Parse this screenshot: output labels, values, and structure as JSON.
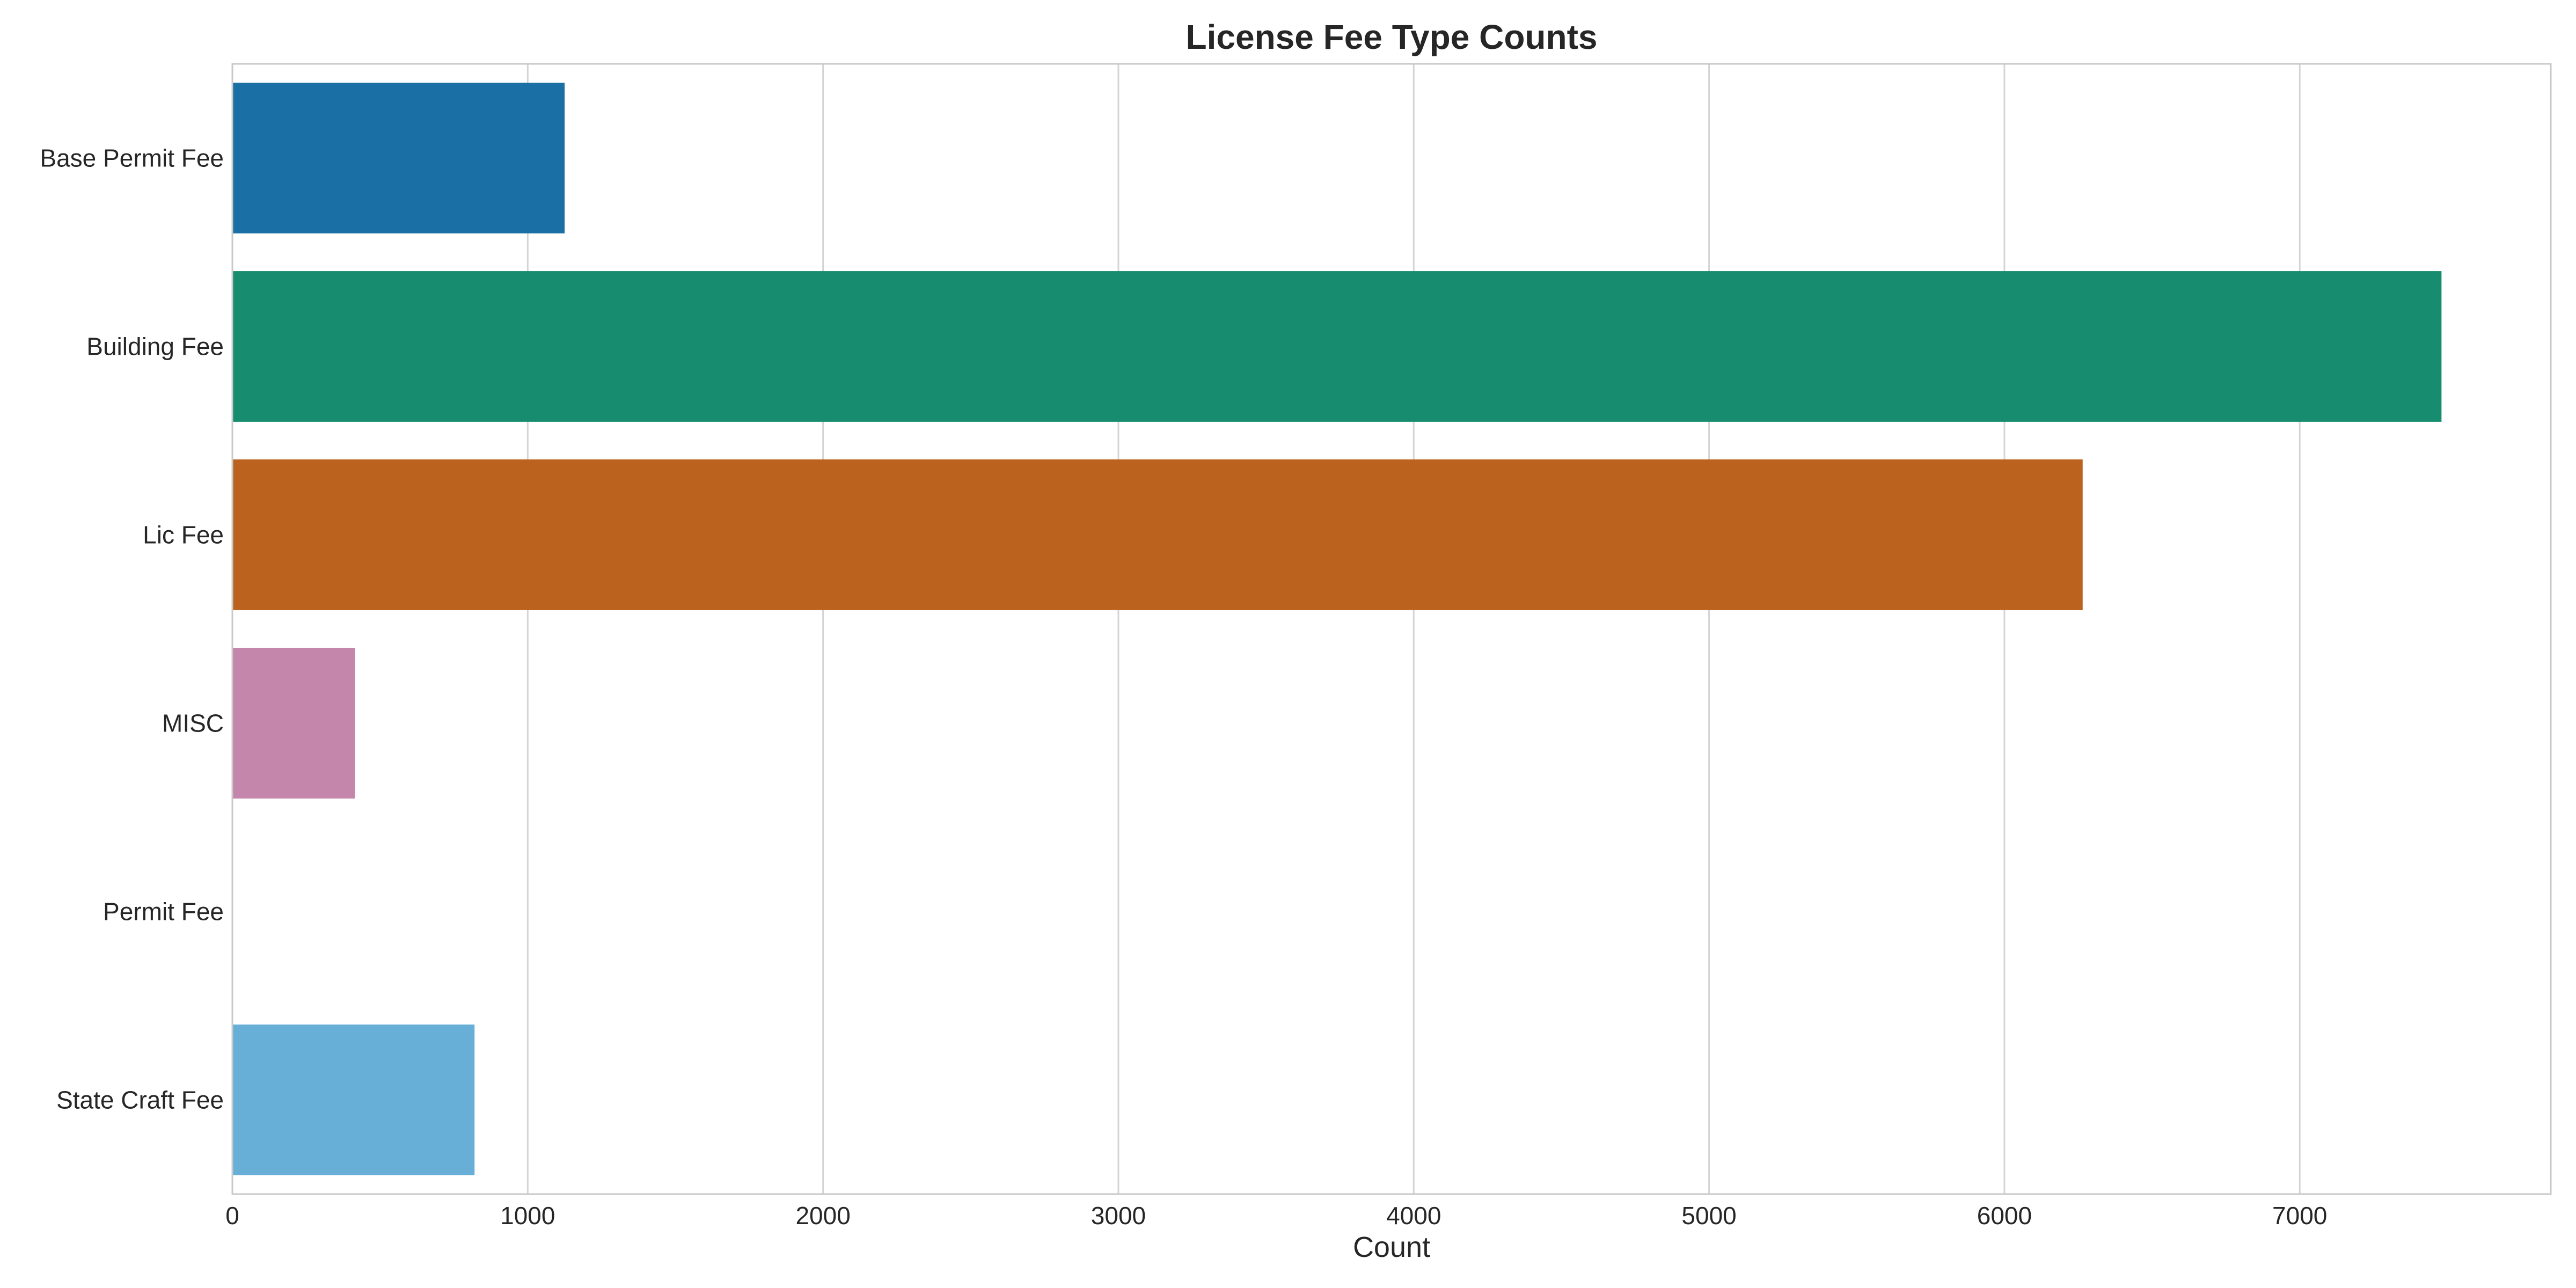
{
  "chart_data": {
    "type": "bar",
    "orientation": "horizontal",
    "title": "License Fee Type Counts",
    "xlabel": "Count",
    "ylabel": "",
    "categories": [
      "Base Permit Fee",
      "Building Fee",
      "Lic Fee",
      "MISC",
      "Permit Fee",
      "State Craft Fee"
    ],
    "values": [
      1125,
      7480,
      6265,
      415,
      0,
      820
    ],
    "colors": [
      "#1a6fa4",
      "#178c6e",
      "#bb631e",
      "#c486aa",
      "#ffffff",
      "#68afd8"
    ],
    "xlim": [
      0,
      7850
    ],
    "xticks": [
      0,
      1000,
      2000,
      3000,
      4000,
      5000,
      6000,
      7000
    ],
    "xtick_labels": [
      "0",
      "1000",
      "2000",
      "3000",
      "4000",
      "5000",
      "6000",
      "7000"
    ],
    "grid": true
  }
}
